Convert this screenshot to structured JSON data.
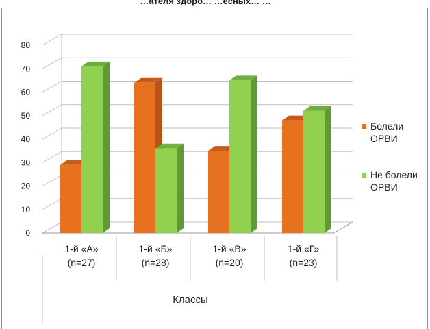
{
  "chart_data": {
    "type": "bar",
    "title_fragment": "…ателя здоро… …есных… …",
    "categories": [
      [
        "1-й «А»",
        "(n=27)"
      ],
      [
        "1-й «Б»",
        "(n=28)"
      ],
      [
        "1-й «В»",
        "(n=20)"
      ],
      [
        "1-й «Г»",
        "(n=23)"
      ]
    ],
    "series": [
      {
        "name": [
          "Болели",
          "ОРВИ"
        ],
        "values": [
          29,
          64,
          35,
          48
        ],
        "color": "#e8711f",
        "side": "#b9511a",
        "top": "#c85a1c"
      },
      {
        "name": [
          "Не болели",
          "ОРВИ"
        ],
        "values": [
          71,
          36,
          65,
          52
        ],
        "color": "#92d050",
        "side": "#5f9a35",
        "top": "#6faf3e"
      }
    ],
    "xlabel": "Классы",
    "ylabel": "",
    "ylim": [
      0,
      80
    ],
    "yticks": [
      0,
      10,
      20,
      30,
      40,
      50,
      60,
      70,
      80
    ],
    "grid": true,
    "legend": "right"
  }
}
